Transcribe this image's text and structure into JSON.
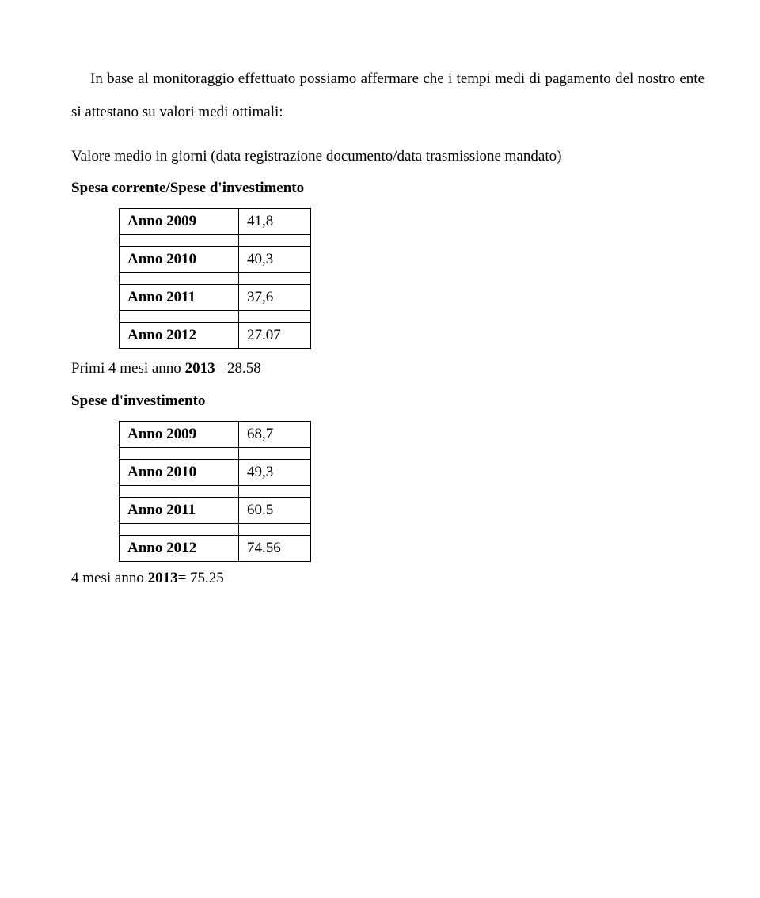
{
  "intro": {
    "line1": "In base al monitoraggio effettuato possiamo affermare che i tempi medi di",
    "line2": "pagamento del nostro ente si attestano su valori medi ottimali:"
  },
  "section1": {
    "line1": "Valore medio in giorni (data registrazione documento/data trasmissione mandato)",
    "line2_a": "Spesa corrente/Spese d",
    "line2_b": "investimento"
  },
  "table1": {
    "rows": [
      {
        "label": "Anno 2009",
        "value": "41,8"
      },
      {
        "label": "Anno 2010",
        "value": "40,3"
      },
      {
        "label": "Anno 2011",
        "value": "37,6"
      },
      {
        "label": "Anno 2012",
        "value": "27.07"
      }
    ]
  },
  "mid": {
    "primi_a": "Primi 4 mesi anno ",
    "primi_b": "2013",
    "primi_c": "= 28.58",
    "spese_a": "Spese d",
    "spese_b": "investimento"
  },
  "table2": {
    "rows": [
      {
        "label": "Anno 2009",
        "value": "68,7"
      },
      {
        "label": "Anno 2010",
        "value": "49,3"
      },
      {
        "label": "Anno 2011",
        "value": "60.5"
      },
      {
        "label": "Anno 2012",
        "value": "74.56"
      }
    ]
  },
  "footer": {
    "a": "4 mesi anno ",
    "b": "2013",
    "c": "= 75.25"
  },
  "style": {
    "text_color": "#000000",
    "background": "#ffffff",
    "font_family": "Georgia serif",
    "body_fontsize": 19,
    "table_cell_border": "#000000",
    "table_label_width": 130,
    "table_val_width": 70
  }
}
